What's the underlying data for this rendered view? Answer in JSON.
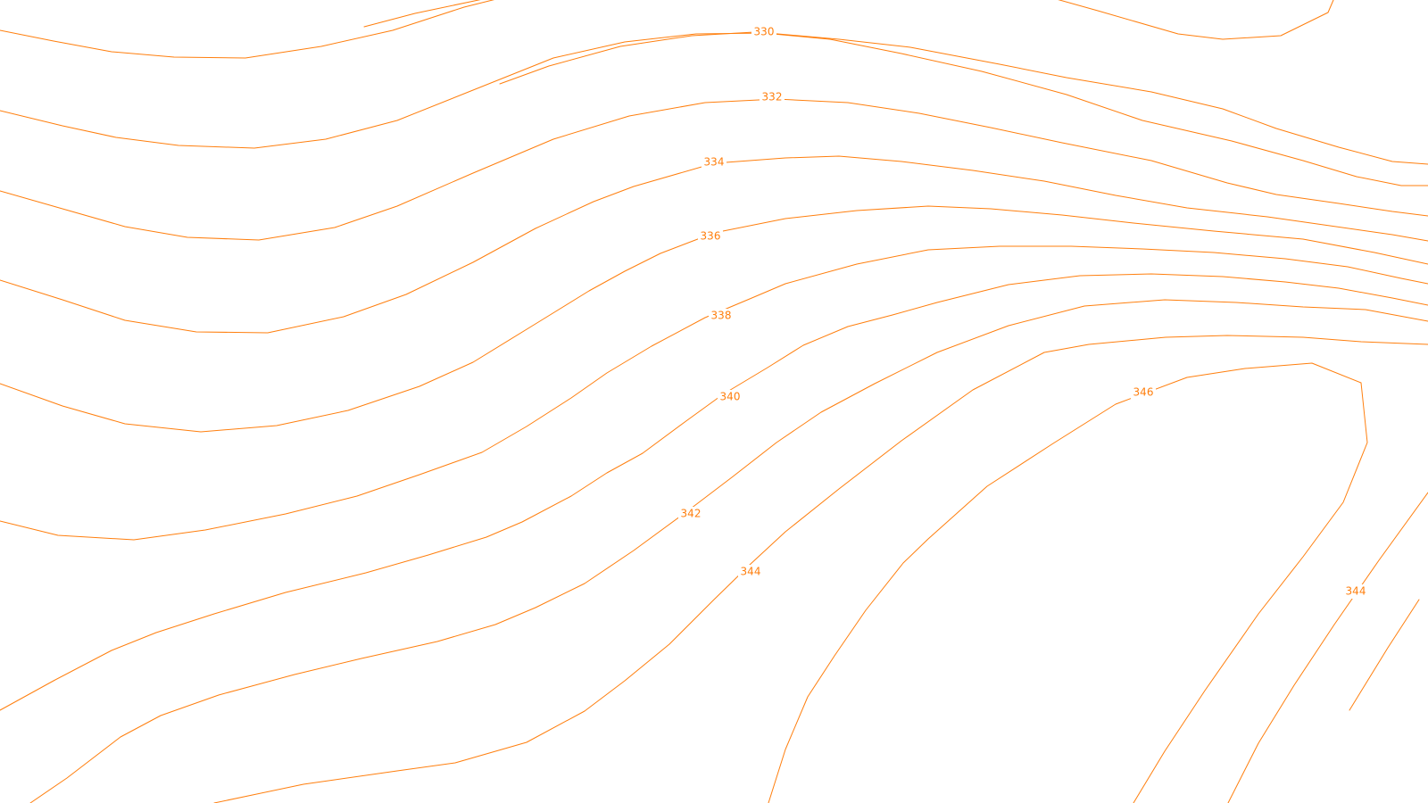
{
  "map": {
    "background_color": "#ffffff",
    "contour_color": "#ff7f0e",
    "contour_interval": 2,
    "labels": [
      {
        "value": "330"
      },
      {
        "value": "332"
      },
      {
        "value": "334"
      },
      {
        "value": "336"
      },
      {
        "value": "338"
      },
      {
        "value": "340"
      },
      {
        "value": "342"
      },
      {
        "value": "344"
      },
      {
        "value": "346"
      },
      {
        "value": "344"
      }
    ]
  }
}
